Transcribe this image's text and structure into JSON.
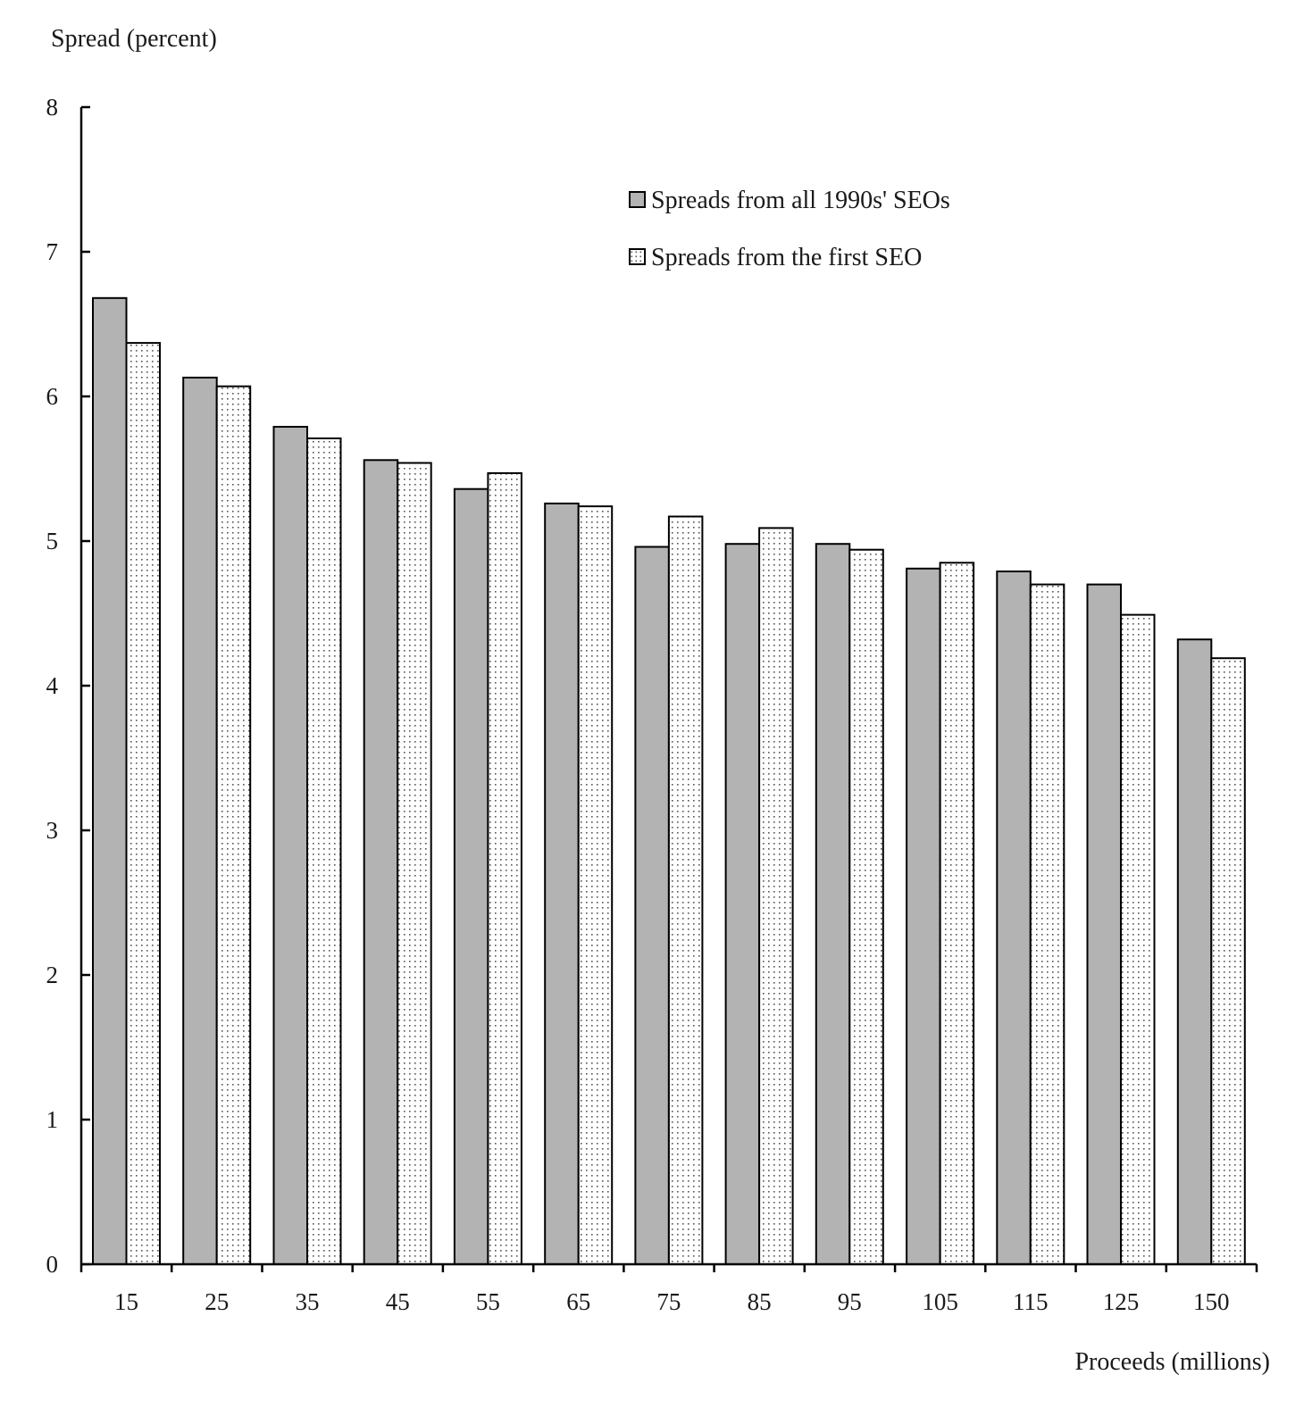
{
  "chart_data": {
    "type": "bar",
    "title": "",
    "ylabel": "Spread (percent)",
    "xlabel": "Proceeds (millions)",
    "ylim": [
      0,
      8
    ],
    "yticks": [
      0,
      1,
      2,
      3,
      4,
      5,
      6,
      7,
      8
    ],
    "grid": false,
    "legend_position": "top-right",
    "categories": [
      "15",
      "25",
      "35",
      "45",
      "55",
      "65",
      "75",
      "85",
      "95",
      "105",
      "115",
      "125",
      "150"
    ],
    "series": [
      {
        "name": "Spreads from all 1990s' SEOs",
        "fill": "solid-gray",
        "color": "#b3b3b3",
        "values": [
          6.68,
          6.13,
          5.79,
          5.56,
          5.36,
          5.26,
          4.96,
          4.98,
          4.98,
          4.81,
          4.79,
          4.7,
          4.32
        ]
      },
      {
        "name": "Spreads from the first SEO",
        "fill": "dotted",
        "color": "#ffffff",
        "values": [
          6.37,
          6.07,
          5.71,
          5.54,
          5.47,
          5.24,
          5.17,
          5.09,
          4.94,
          4.85,
          4.7,
          4.49,
          4.19
        ]
      }
    ]
  }
}
